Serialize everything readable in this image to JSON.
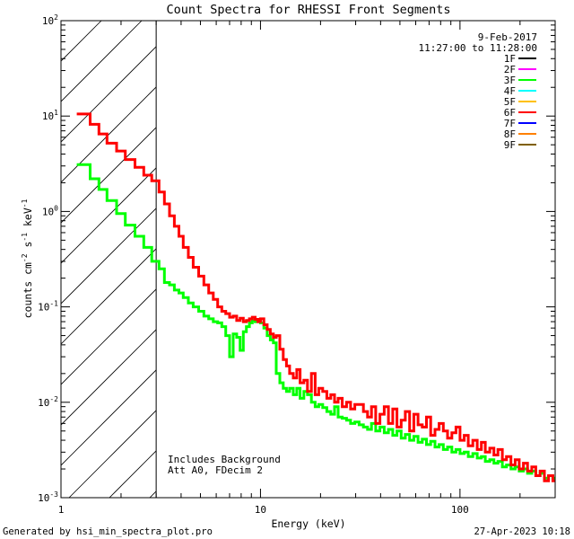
{
  "chart_data": {
    "type": "line",
    "title": "Count Spectra for RHESSI Front Segments",
    "xlabel": "Energy (keV)",
    "ylabel_parts": {
      "base": "counts cm",
      "exp1": "-2",
      "mid": " s",
      "exp2": "-1",
      "mid2": " keV",
      "exp3": "-1"
    },
    "xscale": "log",
    "yscale": "log",
    "xlim": [
      1,
      300
    ],
    "ylim": [
      0.001,
      100
    ],
    "x_ticks": [
      {
        "v": 1,
        "label": "1"
      },
      {
        "v": 10,
        "label": "10"
      },
      {
        "v": 100,
        "label": "100"
      }
    ],
    "y_ticks": [
      {
        "v": 0.001,
        "base": "10",
        "exp": "-3"
      },
      {
        "v": 0.01,
        "base": "10",
        "exp": "-2"
      },
      {
        "v": 0.1,
        "base": "10",
        "exp": "-1"
      },
      {
        "v": 1,
        "base": "10",
        "exp": "0"
      },
      {
        "v": 10,
        "base": "10",
        "exp": "1"
      },
      {
        "v": 100,
        "base": "10",
        "exp": "2"
      }
    ],
    "shaded_region": {
      "x_from": 1,
      "x_to": 3
    },
    "date": "9-Feb-2017",
    "time_range": "11:27:00 to 11:28:00",
    "legend": [
      {
        "name": "1F",
        "color": "#000000"
      },
      {
        "name": "2F",
        "color": "#ff00ff"
      },
      {
        "name": "3F",
        "color": "#00ff00"
      },
      {
        "name": "4F",
        "color": "#00ffff"
      },
      {
        "name": "5F",
        "color": "#ffc000"
      },
      {
        "name": "6F",
        "color": "#ff0000"
      },
      {
        "name": "7F",
        "color": "#0000ff"
      },
      {
        "name": "8F",
        "color": "#ff8000"
      },
      {
        "name": "9F",
        "color": "#806000"
      }
    ],
    "annotations": [
      "Includes Background",
      "Att A0, FDecim 2"
    ],
    "series": [
      {
        "name": "6F",
        "color": "#ff0000",
        "x": [
          1.2,
          1.4,
          1.55,
          1.7,
          1.9,
          2.1,
          2.35,
          2.6,
          2.85,
          3.1,
          3.3,
          3.5,
          3.7,
          3.9,
          4.1,
          4.35,
          4.6,
          4.9,
          5.2,
          5.5,
          5.8,
          6.1,
          6.4,
          6.7,
          7.0,
          7.3,
          7.6,
          7.9,
          8.2,
          8.5,
          8.8,
          9.1,
          9.4,
          9.7,
          10.0,
          10.4,
          10.8,
          11.2,
          11.6,
          12.0,
          12.5,
          13.0,
          13.5,
          14.0,
          14.6,
          15.2,
          15.8,
          16.5,
          17.2,
          18.0,
          18.8,
          19.6,
          20.5,
          21.5,
          22.5,
          23.5,
          24.5,
          25.7,
          27.0,
          28.3,
          29.7,
          31.2,
          32.8,
          34.4,
          36.0,
          37.8,
          39.7,
          41.7,
          43.8,
          46.0,
          48.3,
          50.7,
          53.2,
          55.9,
          58.7,
          61.6,
          64.7,
          67.9,
          71.3,
          74.9,
          78.6,
          82.5,
          86.6,
          91.0,
          95.5,
          100.0,
          105.0,
          110.0,
          116.0,
          122.0,
          128.0,
          134.0,
          141.0,
          148.0,
          155.0,
          163.0,
          171.0,
          180.0,
          189.0,
          198.0,
          208.0,
          218.0,
          229.0,
          240.0,
          252.0,
          265.0,
          278.0,
          292.0
        ],
        "y": [
          10.5,
          8.2,
          6.5,
          5.2,
          4.3,
          3.5,
          2.9,
          2.4,
          2.1,
          1.6,
          1.2,
          0.9,
          0.7,
          0.55,
          0.42,
          0.33,
          0.26,
          0.21,
          0.17,
          0.14,
          0.12,
          0.1,
          0.09,
          0.085,
          0.078,
          0.08,
          0.072,
          0.076,
          0.07,
          0.072,
          0.075,
          0.078,
          0.074,
          0.07,
          0.075,
          0.065,
          0.058,
          0.052,
          0.048,
          0.05,
          0.036,
          0.028,
          0.024,
          0.02,
          0.018,
          0.022,
          0.016,
          0.017,
          0.013,
          0.02,
          0.012,
          0.014,
          0.013,
          0.011,
          0.012,
          0.01,
          0.011,
          0.009,
          0.01,
          0.0085,
          0.0095,
          0.0095,
          0.008,
          0.007,
          0.009,
          0.006,
          0.0075,
          0.009,
          0.006,
          0.0085,
          0.0055,
          0.0065,
          0.008,
          0.005,
          0.0075,
          0.0058,
          0.0055,
          0.007,
          0.0045,
          0.0052,
          0.006,
          0.005,
          0.0042,
          0.0048,
          0.0055,
          0.004,
          0.0045,
          0.0035,
          0.004,
          0.0032,
          0.0038,
          0.003,
          0.0033,
          0.0028,
          0.0032,
          0.0025,
          0.0027,
          0.0022,
          0.0025,
          0.002,
          0.0023,
          0.0019,
          0.0021,
          0.0017,
          0.0019,
          0.0015,
          0.0017,
          0.0015
        ]
      },
      {
        "name": "3F",
        "color": "#00ff00",
        "x": [
          1.2,
          1.4,
          1.55,
          1.7,
          1.9,
          2.1,
          2.35,
          2.6,
          2.85,
          3.1,
          3.3,
          3.5,
          3.7,
          3.9,
          4.1,
          4.35,
          4.6,
          4.9,
          5.2,
          5.5,
          5.8,
          6.1,
          6.4,
          6.7,
          7.0,
          7.3,
          7.6,
          7.9,
          8.2,
          8.5,
          8.8,
          9.1,
          9.4,
          9.7,
          10.0,
          10.4,
          10.8,
          11.2,
          11.6,
          12.0,
          12.5,
          13.0,
          13.5,
          14.0,
          14.6,
          15.2,
          15.8,
          16.5,
          17.2,
          18.0,
          18.8,
          19.6,
          20.5,
          21.5,
          22.5,
          23.5,
          24.5,
          25.7,
          27.0,
          28.3,
          29.7,
          31.2,
          32.8,
          34.4,
          36.0,
          37.8,
          39.7,
          41.7,
          43.8,
          46.0,
          48.3,
          50.7,
          53.2,
          55.9,
          58.7,
          61.6,
          64.7,
          67.9,
          71.3,
          74.9,
          78.6,
          82.5,
          86.6,
          91.0,
          95.5,
          100.0,
          105.0,
          110.0,
          116.0,
          122.0,
          128.0,
          134.0,
          141.0,
          148.0,
          155.0,
          163.0,
          171.0,
          180.0,
          189.0,
          198.0,
          208.0,
          218.0,
          229.0,
          240.0,
          252.0,
          265.0,
          278.0,
          292.0
        ],
        "y": [
          3.1,
          2.2,
          1.7,
          1.3,
          0.95,
          0.72,
          0.55,
          0.42,
          0.3,
          0.25,
          0.18,
          0.17,
          0.15,
          0.14,
          0.125,
          0.11,
          0.1,
          0.09,
          0.08,
          0.075,
          0.07,
          0.068,
          0.062,
          0.05,
          0.03,
          0.052,
          0.048,
          0.035,
          0.055,
          0.062,
          0.068,
          0.072,
          0.07,
          0.072,
          0.068,
          0.06,
          0.05,
          0.045,
          0.042,
          0.02,
          0.016,
          0.014,
          0.013,
          0.014,
          0.012,
          0.014,
          0.011,
          0.013,
          0.012,
          0.01,
          0.009,
          0.0095,
          0.0088,
          0.008,
          0.0075,
          0.009,
          0.007,
          0.0068,
          0.0065,
          0.006,
          0.0062,
          0.0058,
          0.0055,
          0.0052,
          0.006,
          0.005,
          0.0055,
          0.0048,
          0.0052,
          0.0045,
          0.005,
          0.0042,
          0.0046,
          0.004,
          0.0044,
          0.0038,
          0.0041,
          0.0036,
          0.0039,
          0.0034,
          0.0036,
          0.0032,
          0.0034,
          0.003,
          0.0032,
          0.0029,
          0.003,
          0.0027,
          0.0029,
          0.0026,
          0.0027,
          0.0024,
          0.0025,
          0.0023,
          0.0024,
          0.0021,
          0.0022,
          0.002,
          0.0021,
          0.0019,
          0.002,
          0.0018,
          0.0019,
          0.0017,
          0.0018,
          0.0016,
          0.0017,
          0.0016
        ]
      }
    ]
  },
  "footer": {
    "left": "Generated by hsi_min_spectra_plot.pro",
    "right": "27-Apr-2023 10:18"
  }
}
